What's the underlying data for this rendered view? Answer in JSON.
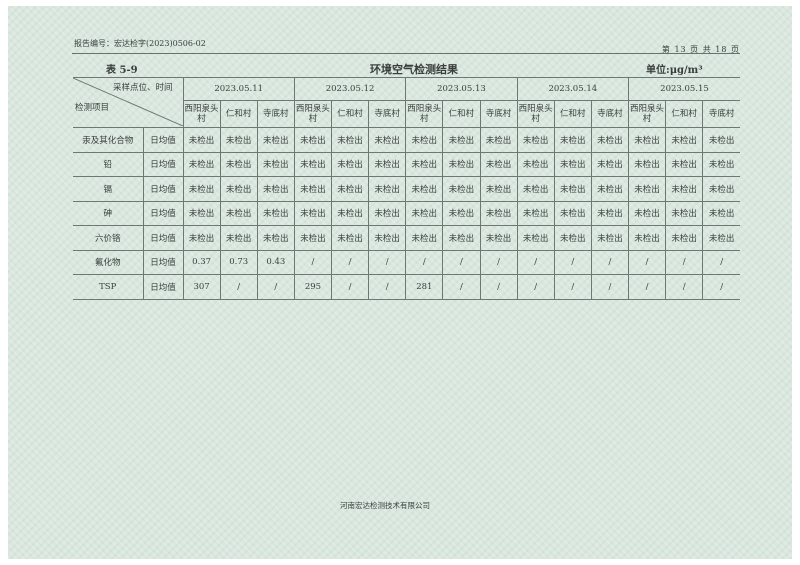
{
  "header": {
    "report_no": "报告编号：宏达检字(2023)0506-02",
    "page": "第 13 页 共 18 页"
  },
  "table": {
    "number": "表 5-9",
    "title": "环境空气检测结果",
    "unit": "单位:μg/m³",
    "corner_top": "采样点位、时间",
    "corner_bottom": "检测项目",
    "dates": [
      "2023.05.11",
      "2023.05.12",
      "2023.05.13",
      "2023.05.14",
      "2023.05.15"
    ],
    "sites": [
      "西阳泉头村",
      "仁和村",
      "寺底村"
    ],
    "rows": [
      {
        "item": "汞及其化合物",
        "type": "日均值",
        "values": [
          "未检出",
          "未检出",
          "未检出",
          "未检出",
          "未检出",
          "未检出",
          "未检出",
          "未检出",
          "未检出",
          "未检出",
          "未检出",
          "未检出",
          "未检出",
          "未检出",
          "未检出"
        ]
      },
      {
        "item": "铅",
        "type": "日均值",
        "values": [
          "未检出",
          "未检出",
          "未检出",
          "未检出",
          "未检出",
          "未检出",
          "未检出",
          "未检出",
          "未检出",
          "未检出",
          "未检出",
          "未检出",
          "未检出",
          "未检出",
          "未检出"
        ]
      },
      {
        "item": "镉",
        "type": "日均值",
        "values": [
          "未检出",
          "未检出",
          "未检出",
          "未检出",
          "未检出",
          "未检出",
          "未检出",
          "未检出",
          "未检出",
          "未检出",
          "未检出",
          "未检出",
          "未检出",
          "未检出",
          "未检出"
        ]
      },
      {
        "item": "砷",
        "type": "日均值",
        "values": [
          "未检出",
          "未检出",
          "未检出",
          "未检出",
          "未检出",
          "未检出",
          "未检出",
          "未检出",
          "未检出",
          "未检出",
          "未检出",
          "未检出",
          "未检出",
          "未检出",
          "未检出"
        ]
      },
      {
        "item": "六价铬",
        "type": "日均值",
        "values": [
          "未检出",
          "未检出",
          "未检出",
          "未检出",
          "未检出",
          "未检出",
          "未检出",
          "未检出",
          "未检出",
          "未检出",
          "未检出",
          "未检出",
          "未检出",
          "未检出",
          "未检出"
        ]
      },
      {
        "item": "氟化物",
        "type": "日均值",
        "values": [
          "0.37",
          "0.73",
          "0.43",
          "/",
          "/",
          "/",
          "/",
          "/",
          "/",
          "/",
          "/",
          "/",
          "/",
          "/",
          "/"
        ]
      },
      {
        "item": "TSP",
        "type": "日均值",
        "values": [
          "307",
          "/",
          "/",
          "295",
          "/",
          "/",
          "281",
          "/",
          "/",
          "/",
          "/",
          "/",
          "/",
          "/",
          "/"
        ]
      }
    ]
  },
  "footer": {
    "company": "河南宏达检测技术有限公司"
  }
}
